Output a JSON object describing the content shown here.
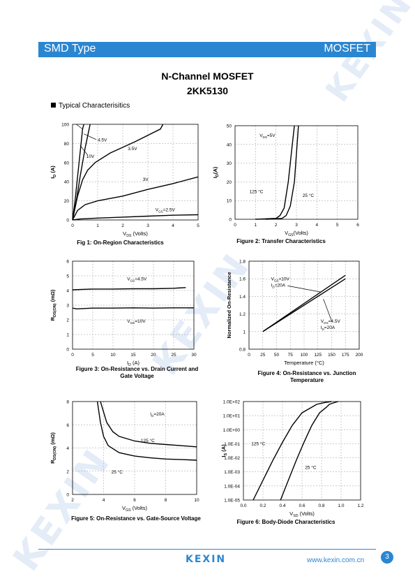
{
  "header": {
    "left": "SMD Type",
    "right": "MOSFET"
  },
  "title": "N-Channel MOSFET",
  "part": "2KK5130",
  "section": "Typical  Characterisitics",
  "watermark": "KEXIN",
  "footer": {
    "logo": "KEXIN",
    "url": "www.kexin.com.cn",
    "page": "3"
  },
  "colors": {
    "brand": "#2b86d1",
    "watermark": "#e3ecf7"
  },
  "charts": [
    {
      "caption": "Fig 1: On-Region Characteristics",
      "ylabel_main": "I",
      "ylabel_sub": "D",
      "ylabel_unit": " (A)",
      "xlabel_main": "V",
      "xlabel_sub": "DS",
      "xlabel_unit": " (Volts)",
      "xlim": [
        0,
        5
      ],
      "ylim": [
        0,
        100
      ],
      "xticks": [
        "0",
        "1",
        "2",
        "3",
        "4",
        "5"
      ],
      "yticks": [
        "0",
        "20",
        "40",
        "60",
        "80",
        "100"
      ],
      "chart_data": {
        "type": "line",
        "series": [
          {
            "name": "10V",
            "points": [
              [
                0,
                0
              ],
              [
                0.1,
                20
              ],
              [
                0.2,
                45
              ],
              [
                0.3,
                70
              ],
              [
                0.4,
                95
              ],
              [
                0.45,
                100
              ]
            ]
          },
          {
            "name": "4.5V",
            "points": [
              [
                0,
                0
              ],
              [
                0.15,
                20
              ],
              [
                0.3,
                45
              ],
              [
                0.5,
                75
              ],
              [
                0.7,
                100
              ]
            ]
          },
          {
            "name": "3.5V",
            "points": [
              [
                0,
                0
              ],
              [
                0.2,
                25
              ],
              [
                0.4,
                42
              ],
              [
                0.6,
                52
              ],
              [
                0.9,
                60
              ],
              [
                1.5,
                70
              ],
              [
                2.5,
                82
              ],
              [
                3.5,
                95
              ],
              [
                3.6,
                100
              ]
            ]
          },
          {
            "name": "3V",
            "points": [
              [
                0,
                0
              ],
              [
                0.2,
                10
              ],
              [
                0.5,
                16
              ],
              [
                1,
                20
              ],
              [
                2,
                25
              ],
              [
                3,
                32
              ],
              [
                4,
                38
              ],
              [
                5,
                45
              ]
            ]
          },
          {
            "name": "V_GS=2.5V",
            "points": [
              [
                0,
                0
              ],
              [
                0.3,
                1
              ],
              [
                1,
                2
              ],
              [
                2,
                3
              ],
              [
                3,
                4
              ],
              [
                4,
                5
              ],
              [
                5,
                5.5
              ]
            ]
          }
        ]
      },
      "annotations": [
        {
          "text": "4.5V",
          "x": 1.0,
          "y": 82
        },
        {
          "text": "3.5V",
          "x": 2.2,
          "y": 73
        },
        {
          "text": "10V",
          "x": 0.55,
          "y": 65
        },
        {
          "text": "3V",
          "x": 2.8,
          "y": 41
        },
        {
          "text": "V",
          "sub": "GS",
          "rest": "=2.5V",
          "x": 3.3,
          "y": 9
        }
      ]
    },
    {
      "caption": "Figure 2: Transfer Characteristics",
      "ylabel_main": "I",
      "ylabel_sub": "D",
      "ylabel_unit": "(A)",
      "xlabel_main": "V",
      "xlabel_sub": "GS",
      "xlabel_unit": "(Volts)",
      "xlim": [
        0,
        6
      ],
      "ylim": [
        0,
        50
      ],
      "xticks": [
        "0",
        "1",
        "2",
        "3",
        "4",
        "5",
        "6"
      ],
      "yticks": [
        "0",
        "10",
        "20",
        "30",
        "40",
        "50"
      ],
      "chart_data": {
        "type": "line",
        "series": [
          {
            "name": "125°C",
            "points": [
              [
                1.0,
                0
              ],
              [
                2.0,
                0.5
              ],
              [
                2.2,
                2
              ],
              [
                2.4,
                6
              ],
              [
                2.6,
                20
              ],
              [
                2.8,
                40
              ],
              [
                2.9,
                50
              ]
            ]
          },
          {
            "name": "25°C",
            "points": [
              [
                1.5,
                0
              ],
              [
                2.3,
                0.5
              ],
              [
                2.5,
                2
              ],
              [
                2.7,
                7
              ],
              [
                2.9,
                20
              ],
              [
                3.0,
                35
              ],
              [
                3.1,
                50
              ]
            ]
          }
        ]
      },
      "annotations": [
        {
          "text": "V",
          "sub": "DS",
          "rest": "=5V",
          "x": 1.2,
          "y": 44
        },
        {
          "text": "125 °C",
          "x": 0.7,
          "y": 14
        },
        {
          "text": "25 °C",
          "x": 3.3,
          "y": 12
        }
      ]
    },
    {
      "caption": "Figure 3: On-Resistance vs. Drain Current and Gate Voltage",
      "ylabel_main": "R",
      "ylabel_sub": "DS(ON)",
      "ylabel_unit": " (mΩ)",
      "xlabel_main": "I",
      "xlabel_sub": "D",
      "xlabel_unit": " (A)",
      "xlim": [
        0,
        30
      ],
      "ylim": [
        0,
        6
      ],
      "xticks": [
        "0",
        "5",
        "10",
        "15",
        "20",
        "25",
        "30"
      ],
      "yticks": [
        "0",
        "1",
        "2",
        "3",
        "4",
        "5",
        "6"
      ],
      "chart_data": {
        "type": "line",
        "series": [
          {
            "name": "V_GS=4.5V",
            "points": [
              [
                0,
                4.05
              ],
              [
                5,
                4.1
              ],
              [
                10,
                4.1
              ],
              [
                15,
                4.12
              ],
              [
                20,
                4.12
              ],
              [
                25,
                4.15
              ],
              [
                28,
                4.2
              ]
            ]
          },
          {
            "name": "V_GS=10V",
            "points": [
              [
                0,
                2.8
              ],
              [
                1,
                2.75
              ],
              [
                5,
                2.8
              ],
              [
                10,
                2.8
              ],
              [
                15,
                2.82
              ],
              [
                20,
                2.8
              ],
              [
                25,
                2.82
              ],
              [
                30,
                2.82
              ]
            ]
          }
        ]
      },
      "annotations": [
        {
          "text": "V",
          "sub": "GS",
          "rest": "=4.5V",
          "x": 13.5,
          "y": 4.7
        },
        {
          "text": "V",
          "sub": "GS",
          "rest": "=10V",
          "x": 13.5,
          "y": 1.8
        }
      ]
    },
    {
      "caption": "Figure 4: On-Resistance vs. Junction Temperature",
      "ylabel_main": "Normalized On-Resistance",
      "ylabel_sub": "",
      "ylabel_unit": "",
      "xlabel_main": "Temperature (°C)",
      "xlabel_sub": "",
      "xlabel_unit": "",
      "xlim": [
        0,
        200
      ],
      "ylim": [
        0.8,
        1.8
      ],
      "xticks": [
        "0",
        "25",
        "50",
        "75",
        "100",
        "125",
        "150",
        "175",
        "200"
      ],
      "yticks": [
        "0.8",
        "1",
        "1.2",
        "1.4",
        "1.6",
        "1.8"
      ],
      "chart_data": {
        "type": "line",
        "series": [
          {
            "name": "V_GS=10V, I_D=20A",
            "points": [
              [
                25,
                1.0
              ],
              [
                175,
                1.64
              ]
            ]
          },
          {
            "name": "V_GS=4.5V, I_D=20A",
            "points": [
              [
                25,
                1.0
              ],
              [
                175,
                1.6
              ]
            ]
          }
        ]
      },
      "annotations": [
        {
          "text": "V",
          "sub": "GS",
          "rest": "=10V",
          "x": 40,
          "y": 1.58
        },
        {
          "text": "I",
          "sub": "D",
          "rest": "=20A",
          "x": 40,
          "y": 1.51
        },
        {
          "text": "V",
          "sub": "GS",
          "rest": "=4.5V",
          "x": 130,
          "y": 1.1
        },
        {
          "text": "I",
          "sub": "D",
          "rest": "=20A",
          "x": 130,
          "y": 1.03
        }
      ]
    },
    {
      "caption": "Figure 5: On-Resistance vs. Gate-Source Voltage",
      "ylabel_main": "R",
      "ylabel_sub": "DS(ON)",
      "ylabel_unit": " (mΩ)",
      "xlabel_main": "V",
      "xlabel_sub": "GS",
      "xlabel_unit": " (Volts)",
      "xlim": [
        2,
        10
      ],
      "ylim": [
        0,
        8
      ],
      "xticks": [
        "2",
        "4",
        "6",
        "8",
        "10"
      ],
      "yticks": [
        "0",
        "2",
        "4",
        "6",
        "8"
      ],
      "chart_data": {
        "type": "line",
        "series": [
          {
            "name": "125°C",
            "points": [
              [
                3.8,
                8
              ],
              [
                4.2,
                6.2
              ],
              [
                4.6,
                5.4
              ],
              [
                5,
                5
              ],
              [
                6,
                4.6
              ],
              [
                7,
                4.4
              ],
              [
                8,
                4.3
              ],
              [
                9,
                4.2
              ],
              [
                10,
                4.1
              ]
            ]
          },
          {
            "name": "25°C",
            "points": [
              [
                3.6,
                8
              ],
              [
                3.8,
                6.2
              ],
              [
                4,
                5
              ],
              [
                4.3,
                4.2
              ],
              [
                5,
                3.6
              ],
              [
                6,
                3.3
              ],
              [
                7,
                3.15
              ],
              [
                8,
                3.05
              ],
              [
                9,
                3.0
              ],
              [
                10,
                2.95
              ]
            ]
          }
        ]
      },
      "annotations": [
        {
          "text": "I",
          "sub": "D",
          "rest": "=20A",
          "x": 7.0,
          "y": 6.8
        },
        {
          "text": "125 °C",
          "x": 6.4,
          "y": 4.5
        },
        {
          "text": "25 °C",
          "x": 4.5,
          "y": 1.8
        }
      ]
    },
    {
      "caption": "Figure 6: Body-Diode Characteristics",
      "ylabel_main": "I",
      "ylabel_sub": "S",
      "ylabel_unit": " (A)",
      "xlabel_main": "V",
      "xlabel_sub": "SD",
      "xlabel_unit": " (Volts)",
      "xlim": [
        0,
        1.2
      ],
      "ylim": [
        -5,
        2
      ],
      "log": true,
      "xticks": [
        "0.0",
        "0.2",
        "0.4",
        "0.6",
        "0.8",
        "1.0",
        "1.2"
      ],
      "yticks": [
        "1.0E-05",
        "1.0E-04",
        "1.0E-03",
        "1.0E-02",
        "1.0E-01",
        "1.0E+00",
        "1.0E+01",
        "1.0E+02"
      ],
      "chart_data": {
        "type": "line",
        "series": [
          {
            "name": "125°C",
            "points": [
              [
                0.1,
                -5
              ],
              [
                0.2,
                -3.6
              ],
              [
                0.3,
                -2.2
              ],
              [
                0.4,
                -0.9
              ],
              [
                0.5,
                0.3
              ],
              [
                0.6,
                1.2
              ],
              [
                0.7,
                1.6
              ],
              [
                0.75,
                1.8
              ],
              [
                0.8,
                1.88
              ],
              [
                0.85,
                1.95
              ],
              [
                0.9,
                2
              ]
            ]
          },
          {
            "name": "25°C",
            "points": [
              [
                0.38,
                -5
              ],
              [
                0.46,
                -3.6
              ],
              [
                0.54,
                -2.2
              ],
              [
                0.62,
                -0.9
              ],
              [
                0.7,
                0.3
              ],
              [
                0.78,
                1.2
              ],
              [
                0.85,
                1.6
              ],
              [
                0.88,
                1.8
              ],
              [
                0.92,
                1.9
              ],
              [
                0.97,
                2
              ]
            ]
          }
        ]
      },
      "annotations": [
        {
          "text": "125 °C",
          "x": 0.08,
          "y": -1.1
        },
        {
          "text": "25 °C",
          "x": 0.63,
          "y": -2.8
        }
      ]
    }
  ]
}
